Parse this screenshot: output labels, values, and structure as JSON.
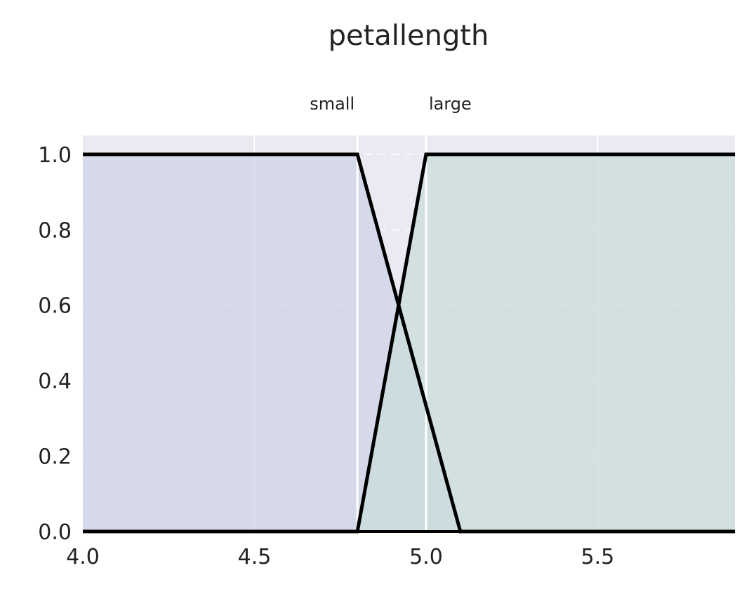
{
  "chart_data": {
    "type": "area",
    "title": "petallength",
    "xlabel": "",
    "ylabel": "",
    "xlim": [
      4.0,
      5.9
    ],
    "ylim": [
      0.0,
      1.05
    ],
    "grid": true,
    "background": "#eaeaf2",
    "xticks": [
      4.0,
      4.5,
      5.0,
      5.5
    ],
    "xtick_labels": [
      "4.0",
      "4.5",
      "5.0",
      "5.5"
    ],
    "yticks": [
      0.0,
      0.2,
      0.4,
      0.6,
      0.8,
      1.0
    ],
    "ytick_labels": [
      "0.0",
      "0.2",
      "0.4",
      "0.6",
      "0.8",
      "1.0"
    ],
    "vlines": [
      4.8,
      5.0
    ],
    "series": [
      {
        "name": "small",
        "label_x": 4.8,
        "fill": "#cdd3e7",
        "x": [
          4.0,
          4.8,
          5.1,
          5.9
        ],
        "y": [
          1.0,
          1.0,
          0.0,
          0.0
        ]
      },
      {
        "name": "large",
        "label_x": 5.0,
        "fill": "#cadcd9",
        "x": [
          4.0,
          4.8,
          5.0,
          5.9
        ],
        "y": [
          0.0,
          0.0,
          1.0,
          1.0
        ]
      }
    ]
  }
}
